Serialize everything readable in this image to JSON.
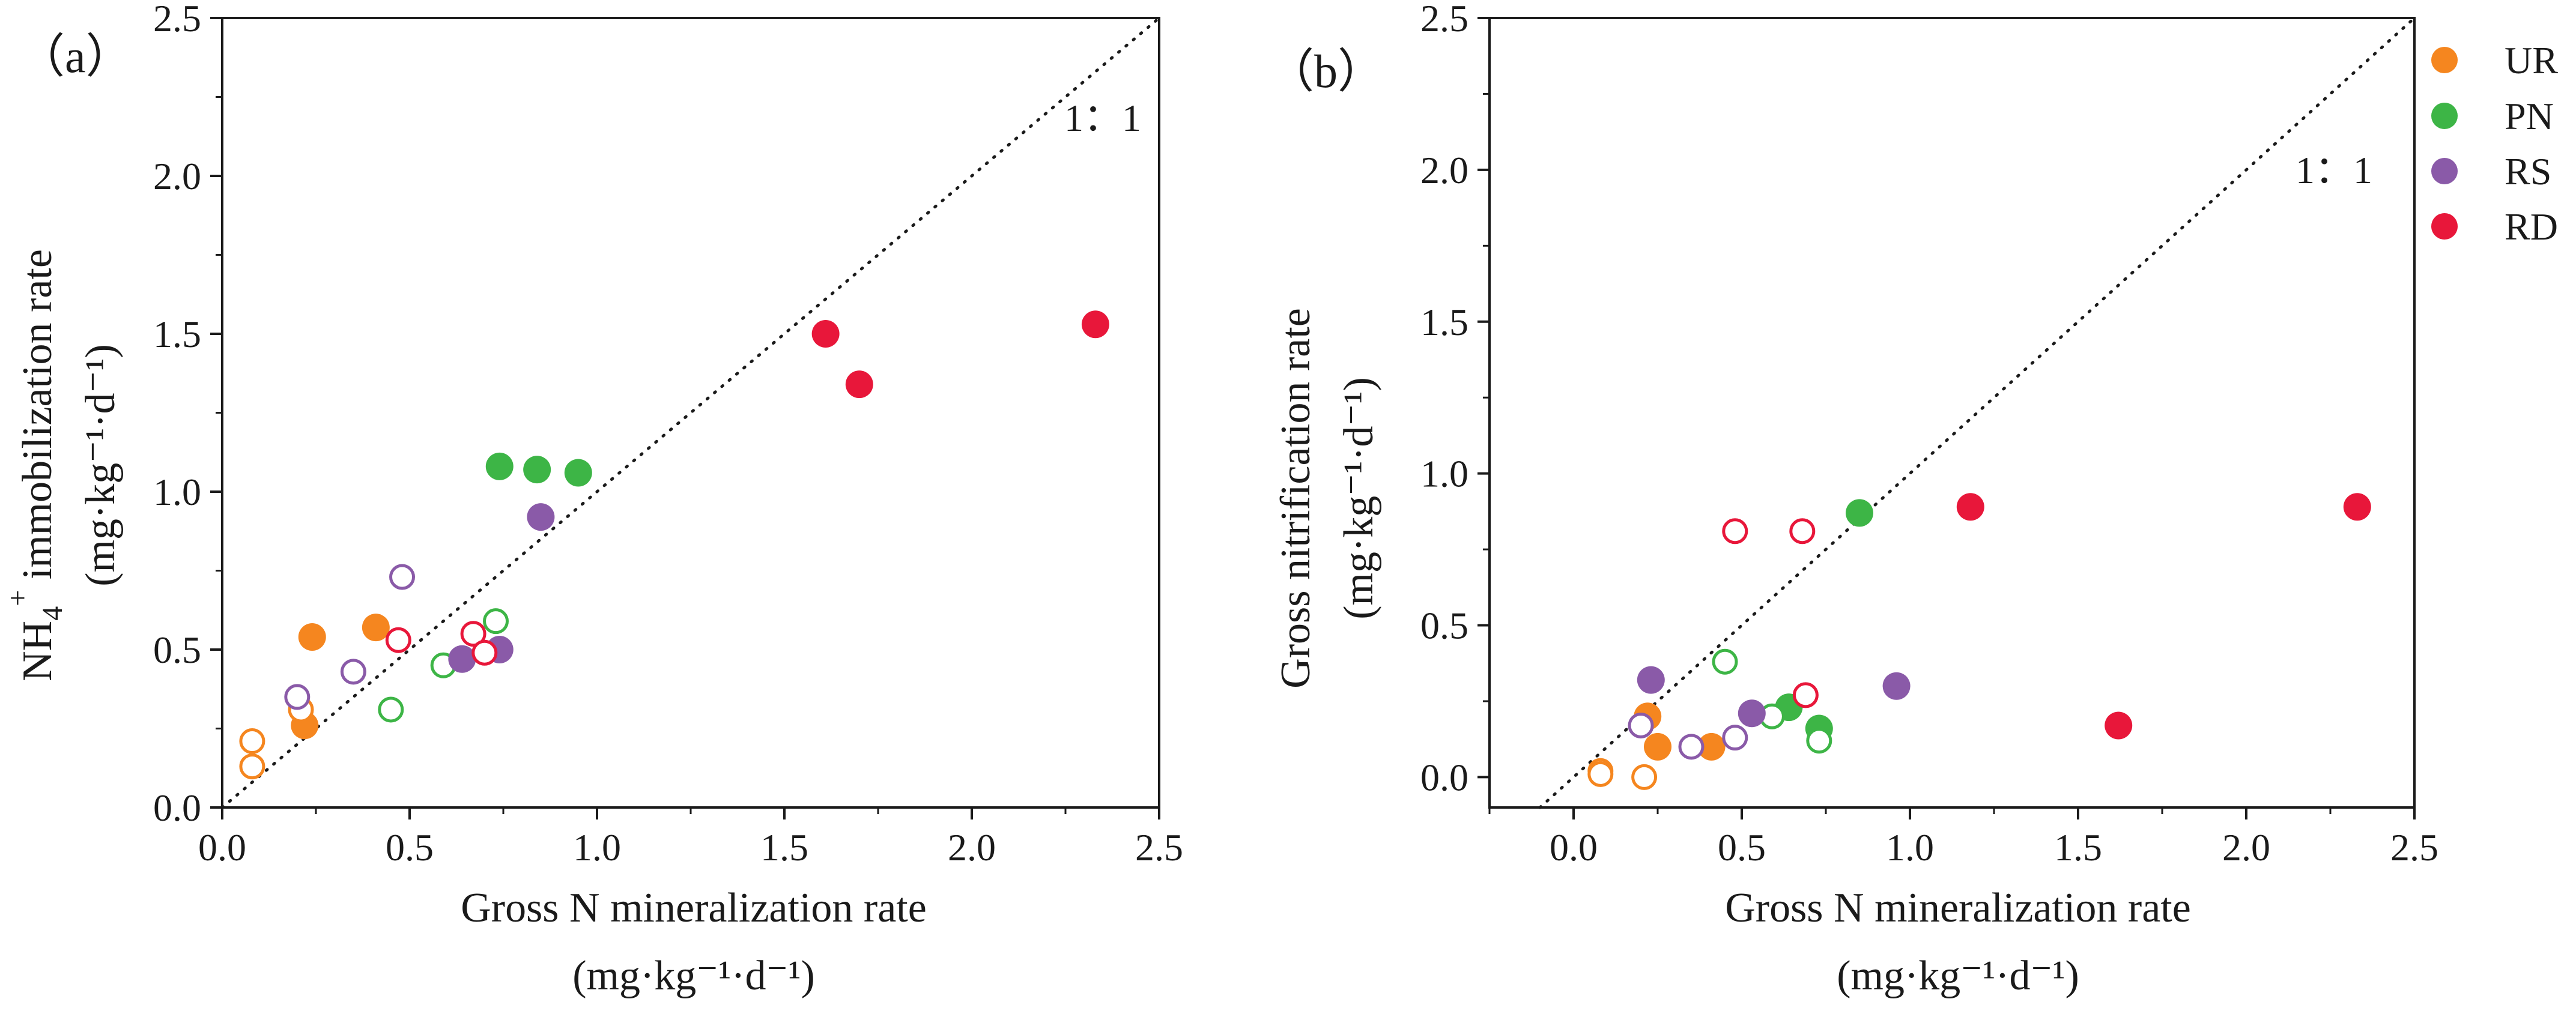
{
  "chart_data": [
    {
      "panel_label": "（a）",
      "type": "scatter",
      "xlabel": "Gross N mineralization rate",
      "xunit": "(mg·kg⁻¹·d⁻¹)",
      "ylabel_html": "NH₄⁺ immobilization rate",
      "ylabel_unit": "(mg·kg⁻¹·d⁻¹)",
      "xlim": [
        0,
        2.5
      ],
      "ylim": [
        0,
        2.5
      ],
      "xticks": [
        "0.0",
        "0.5",
        "1.0",
        "1.5",
        "2.0",
        "2.5"
      ],
      "yticks": [
        "0.0",
        "0.5",
        "1.0",
        "1.5",
        "2.0",
        "2.5"
      ],
      "reference_line": "1：1",
      "series": [
        {
          "name": "UR",
          "filled": true,
          "points": [
            [
              0.24,
              0.54
            ],
            [
              0.41,
              0.57
            ],
            [
              0.22,
              0.26
            ]
          ]
        },
        {
          "name": "UR",
          "filled": false,
          "points": [
            [
              0.08,
              0.21
            ],
            [
              0.08,
              0.13
            ],
            [
              0.21,
              0.31
            ]
          ]
        },
        {
          "name": "PN",
          "filled": true,
          "points": [
            [
              0.74,
              1.08
            ],
            [
              0.84,
              1.07
            ],
            [
              0.95,
              1.06
            ]
          ]
        },
        {
          "name": "PN",
          "filled": false,
          "points": [
            [
              0.59,
              0.45
            ],
            [
              0.45,
              0.31
            ],
            [
              0.73,
              0.59
            ]
          ]
        },
        {
          "name": "RS",
          "filled": true,
          "points": [
            [
              0.85,
              0.92
            ],
            [
              0.64,
              0.47
            ],
            [
              0.74,
              0.5
            ]
          ]
        },
        {
          "name": "RS",
          "filled": false,
          "points": [
            [
              0.48,
              0.73
            ],
            [
              0.35,
              0.43
            ],
            [
              0.2,
              0.35
            ]
          ]
        },
        {
          "name": "RD",
          "filled": true,
          "points": [
            [
              1.61,
              1.5
            ],
            [
              1.7,
              1.34
            ],
            [
              2.33,
              1.53
            ]
          ]
        },
        {
          "name": "RD",
          "filled": false,
          "points": [
            [
              0.47,
              0.53
            ],
            [
              0.67,
              0.55
            ],
            [
              0.7,
              0.49
            ]
          ]
        }
      ]
    },
    {
      "panel_label": "（b）",
      "type": "scatter",
      "xlabel": "Gross N mineralization rate",
      "xunit": "(mg·kg⁻¹·d⁻¹)",
      "ylabel_html": "Gross nitrification rate",
      "ylabel_unit": "(mg·kg⁻¹·d⁻¹)",
      "xlim": [
        -0.25,
        2.5
      ],
      "ylim": [
        -0.1,
        2.5
      ],
      "xticks": [
        "0.0",
        "0.5",
        "1.0",
        "1.5",
        "2.0",
        "2.5"
      ],
      "yticks": [
        "0.0",
        "0.5",
        "1.0",
        "1.5",
        "2.0",
        "2.5"
      ],
      "reference_line": "1：1",
      "series": [
        {
          "name": "UR",
          "filled": true,
          "points": [
            [
              0.22,
              0.2
            ],
            [
              0.25,
              0.1
            ],
            [
              0.41,
              0.1
            ]
          ]
        },
        {
          "name": "UR",
          "filled": false,
          "points": [
            [
              0.08,
              0.02
            ],
            [
              0.08,
              0.01
            ],
            [
              0.21,
              0.0
            ]
          ]
        },
        {
          "name": "PN",
          "filled": true,
          "points": [
            [
              0.85,
              0.87
            ],
            [
              0.64,
              0.23
            ],
            [
              0.73,
              0.16
            ]
          ]
        },
        {
          "name": "PN",
          "filled": false,
          "points": [
            [
              0.45,
              0.38
            ],
            [
              0.59,
              0.2
            ],
            [
              0.73,
              0.12
            ]
          ]
        },
        {
          "name": "RS",
          "filled": true,
          "points": [
            [
              0.23,
              0.32
            ],
            [
              0.53,
              0.21
            ],
            [
              0.96,
              0.3
            ]
          ]
        },
        {
          "name": "RS",
          "filled": false,
          "points": [
            [
              0.2,
              0.17
            ],
            [
              0.35,
              0.1
            ],
            [
              0.48,
              0.13
            ]
          ]
        },
        {
          "name": "RD",
          "filled": true,
          "points": [
            [
              1.18,
              0.89
            ],
            [
              1.62,
              0.17
            ],
            [
              2.33,
              0.89
            ]
          ]
        },
        {
          "name": "RD",
          "filled": false,
          "points": [
            [
              0.48,
              0.81
            ],
            [
              0.68,
              0.81
            ],
            [
              0.69,
              0.27
            ]
          ]
        }
      ]
    }
  ],
  "legend": [
    {
      "label": "UR",
      "color": "#f5861f"
    },
    {
      "label": "PN",
      "color": "#3db546"
    },
    {
      "label": "RS",
      "color": "#8a5aa8"
    },
    {
      "label": "RD",
      "color": "#e8173a"
    }
  ],
  "colors": {
    "UR": "#f5861f",
    "PN": "#3db546",
    "RS": "#8a5aa8",
    "RD": "#e8173a"
  }
}
